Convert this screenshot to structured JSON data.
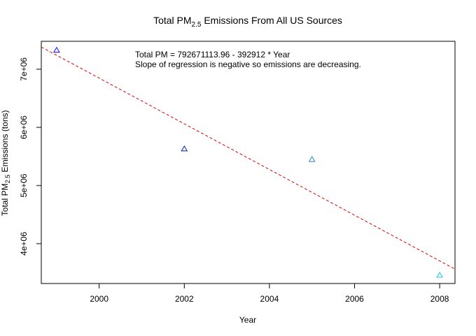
{
  "chart_data": {
    "type": "scatter",
    "title": {
      "prefix": "Total PM",
      "subscript": "2.5",
      "suffix": " Emissions From All US Sources"
    },
    "xlabel": "Year",
    "ylabel": {
      "prefix": "Total PM",
      "subscript": "2.5",
      "suffix": " Emissions (tons)"
    },
    "x_ticks": [
      2000,
      2002,
      2004,
      2006,
      2008
    ],
    "y_ticks": [
      {
        "value": 4000000,
        "label": "4e+06"
      },
      {
        "value": 5000000,
        "label": "5e+06"
      },
      {
        "value": 6000000,
        "label": "6e+06"
      },
      {
        "value": 7000000,
        "label": "7e+06"
      }
    ],
    "xlim": [
      1998.64,
      2008.36
    ],
    "ylim": [
      3315000,
      7480000
    ],
    "points": [
      {
        "x": 1999,
        "y": 7332967,
        "color": "#1f00ff"
      },
      {
        "x": 2002,
        "y": 5635780,
        "color": "#0022aa"
      },
      {
        "x": 2005,
        "y": 5454703,
        "color": "#2a7fd0"
      },
      {
        "x": 2008,
        "y": 3464206,
        "color": "#17c7e6"
      }
    ],
    "regression": {
      "intercept": 792671113.96,
      "slope": -392912,
      "color": "#dd0000"
    },
    "annotations": [
      "Total PM  = 792671113.96 - 392912 * Year",
      "Slope of regression is negative so emissions are decreasing."
    ],
    "grid": false,
    "legend": "none",
    "marker": "open-triangle"
  }
}
